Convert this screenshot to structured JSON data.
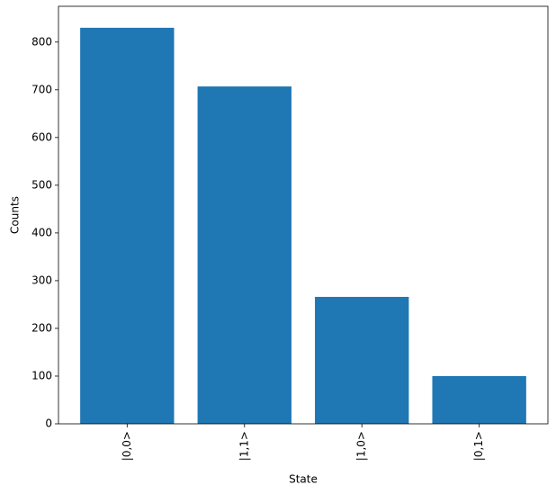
{
  "chart_data": {
    "type": "bar",
    "x_label": "State",
    "y_label": "Counts",
    "categories": [
      "|0,0>",
      "|1,1>",
      "|1,0>",
      "|0,1>"
    ],
    "values": [
      830,
      707,
      266,
      100
    ],
    "color": "#1f77b4",
    "ylim": [
      0,
      875
    ],
    "yticks": [
      0,
      100,
      200,
      300,
      400,
      500,
      600,
      700,
      800
    ],
    "grid": false
  }
}
